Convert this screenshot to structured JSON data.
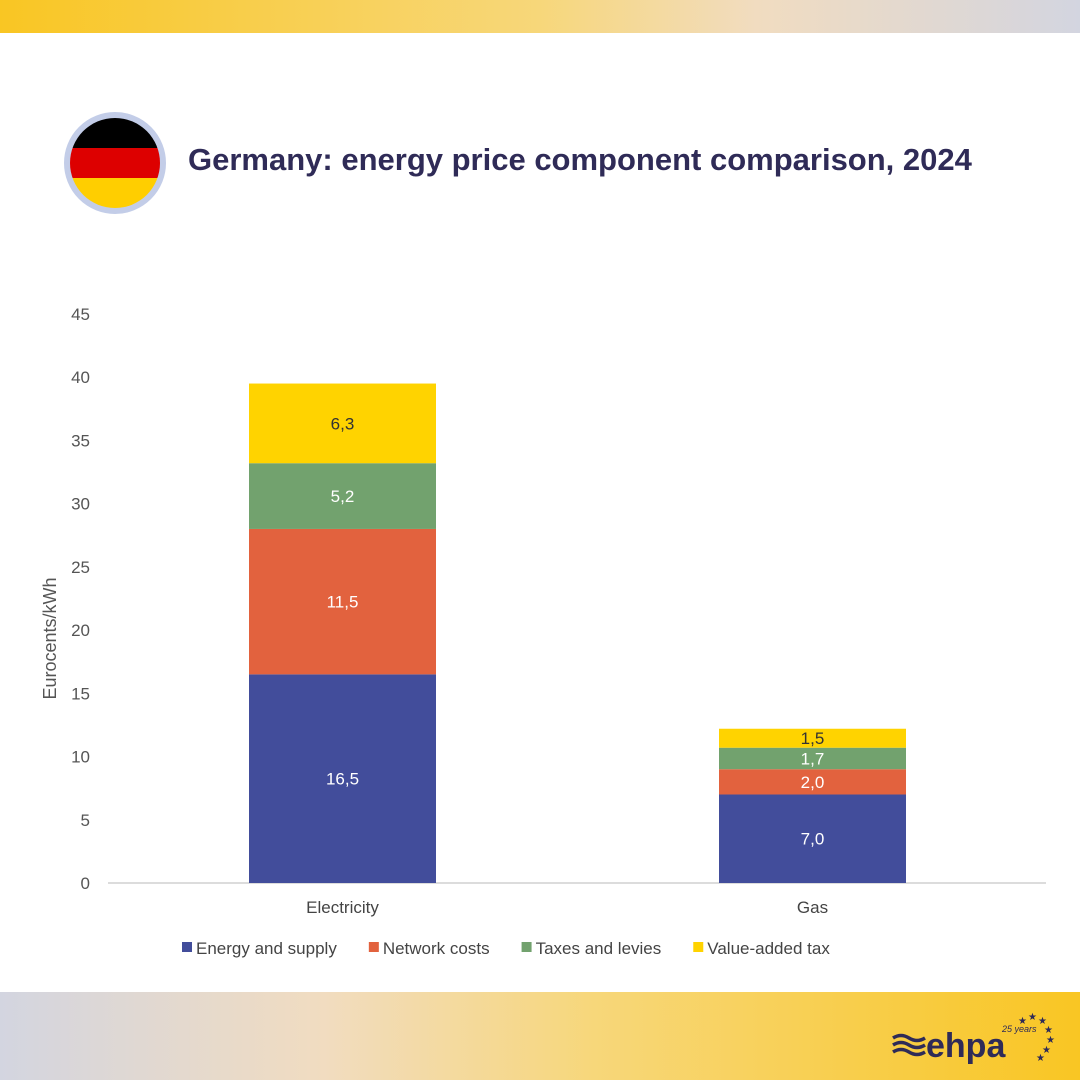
{
  "title": "Germany: energy price component comparison, 2024",
  "flag_colors": [
    "#000000",
    "#dd0000",
    "#ffce00"
  ],
  "logo": {
    "text": "ehpa",
    "tagline": "25 years"
  },
  "chart_data": {
    "type": "bar",
    "stacked": true,
    "categories": [
      "Electricity",
      "Gas"
    ],
    "ylabel": "Eurocents/kWh",
    "ylim": [
      0,
      45
    ],
    "yticks": [
      0,
      5,
      10,
      15,
      20,
      25,
      30,
      35,
      40,
      45
    ],
    "grid": false,
    "legend": "bottom",
    "series": [
      {
        "name": "Energy and supply",
        "color": "#424d9b",
        "label_color": "#ffffff",
        "values": [
          16.5,
          7.0
        ],
        "labels": [
          "16,5",
          "7,0"
        ]
      },
      {
        "name": "Network costs",
        "color": "#e2623e",
        "label_color": "#ffffff",
        "values": [
          11.5,
          2.0
        ],
        "labels": [
          "11,5",
          "2,0"
        ]
      },
      {
        "name": "Taxes and levies",
        "color": "#72a26e",
        "label_color": "#ffffff",
        "values": [
          5.2,
          1.7
        ],
        "labels": [
          "5,2",
          "1,7"
        ]
      },
      {
        "name": "Value-added tax",
        "color": "#ffd300",
        "label_color": "#333333",
        "values": [
          6.3,
          1.5
        ],
        "labels": [
          "6,3",
          "1,5"
        ]
      }
    ]
  }
}
